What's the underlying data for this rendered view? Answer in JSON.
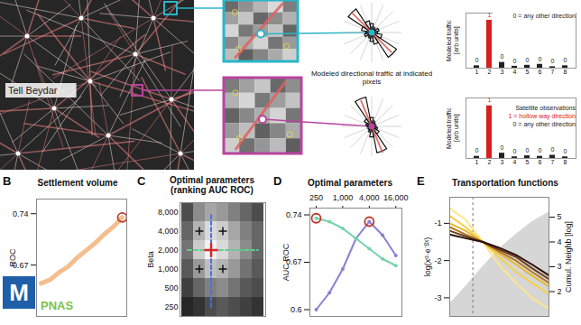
{
  "figure": {
    "map_label": "Tell Beydar",
    "rose_title": "Modeled directional traffic at indicated pixels",
    "roses": [
      {
        "color": "#29b6c9",
        "hollow_way_index": 6,
        "values": [
          0.3,
          0.2,
          0.15,
          0.25,
          0.2,
          0.35,
          1.0,
          0.4,
          0.3,
          0.2,
          0.15,
          0.25,
          0.2,
          0.35,
          0.95,
          0.4
        ]
      },
      {
        "color": "#b8459e",
        "hollow_way_index": 15,
        "values": [
          0.3,
          0.2,
          0.15,
          0.1,
          0.15,
          0.2,
          0.3,
          0.9,
          0.35,
          0.2,
          0.15,
          0.1,
          0.15,
          0.2,
          0.3,
          1.0
        ]
      }
    ],
    "watermark": {
      "letter": "M",
      "text": "PNAS"
    }
  },
  "chart_data": [
    {
      "type": "bar",
      "y_label": "Modeled traffic [arb units]",
      "categories": [
        "1",
        "2",
        "3",
        "4",
        "5",
        "6",
        "7",
        "8"
      ],
      "values": [
        0.05,
        1,
        0.12,
        0.04,
        0.06,
        0.08,
        0.03,
        0.05
      ],
      "observations": [
        0,
        1,
        0,
        0,
        0,
        0,
        0,
        0
      ],
      "colors": [
        "#222222",
        "#d62020",
        "#222222",
        "#222222",
        "#222222",
        "#222222",
        "#222222",
        "#222222"
      ],
      "annotations": [
        {
          "text": "0 = any other direction",
          "color": "#222222"
        }
      ],
      "ylim": [
        0,
        1.15
      ],
      "tick_labels": "x"
    },
    {
      "type": "bar",
      "y_label": "Modeled traffic [arb units]",
      "categories": [
        "1",
        "2",
        "3",
        "4",
        "5",
        "6",
        "7",
        "8"
      ],
      "values": [
        0.04,
        1,
        0.1,
        0.03,
        0.05,
        0.04,
        0.06,
        0.03
      ],
      "observations": [
        0,
        1,
        0,
        0,
        0,
        0,
        0,
        0
      ],
      "colors": [
        "#222222",
        "#d62020",
        "#222222",
        "#222222",
        "#222222",
        "#222222",
        "#222222",
        "#222222"
      ],
      "annotations": [
        {
          "text": "Satellite observations",
          "color": "#222222"
        },
        {
          "text": "1 = hollow way direction",
          "color": "#d62020"
        },
        {
          "text": "0 = any other direction",
          "color": "#222222"
        }
      ],
      "ylim": [
        0,
        1.15
      ],
      "tick_labels": "x"
    },
    {
      "type": "line",
      "panel": "B",
      "title": "Settlement volume",
      "y_label": "ROC",
      "x": [
        1,
        2,
        3,
        4,
        5,
        6,
        7,
        8,
        9,
        10
      ],
      "values": [
        0.645,
        0.65,
        0.66,
        0.668,
        0.68,
        0.69,
        0.7,
        0.712,
        0.722,
        0.735
      ],
      "color": "#f0a868",
      "highlight": {
        "index": 9,
        "color": "#c0392b"
      },
      "xlim": [
        0.5,
        10.5
      ],
      "ylim": [
        0.6,
        0.76
      ],
      "yticks": [
        0.67,
        0.74
      ],
      "tick_labels": "y"
    },
    {
      "type": "heatmap",
      "panel": "C",
      "title": "Optimal parameters (ranking AUC ROC)",
      "y_label": "Beta",
      "categories": [
        "250",
        "500",
        "1,000",
        "2,000",
        "4,000",
        "8,000"
      ],
      "cells": [
        [
          0.15,
          0.2,
          0.3,
          0.35,
          0.3,
          0.25,
          0.2
        ],
        [
          0.25,
          0.4,
          0.5,
          0.55,
          0.45,
          0.35,
          0.3
        ],
        [
          0.35,
          0.6,
          0.75,
          0.7,
          0.6,
          0.45,
          0.35
        ],
        [
          0.45,
          0.8,
          0.95,
          0.85,
          0.7,
          0.55,
          0.4
        ],
        [
          0.4,
          0.7,
          0.85,
          0.8,
          0.65,
          0.5,
          0.4
        ],
        [
          0.3,
          0.55,
          0.65,
          0.6,
          0.5,
          0.4,
          0.3
        ]
      ],
      "color_range": [
        0,
        1
      ],
      "optimum": {
        "col": 2,
        "row": 3,
        "color": "#d62728",
        "col_color": "#4a6fe3",
        "row_color": "#5fcf8f"
      },
      "crosses": [
        [
          1,
          4
        ],
        [
          3,
          2
        ],
        [
          1,
          2
        ],
        [
          3,
          4
        ]
      ],
      "tick_labels": "y"
    },
    {
      "type": "line",
      "panel": "D",
      "title": "Optimal parameters",
      "y_label": "AUC ROC",
      "x": [
        250,
        500,
        1000,
        2000,
        4000,
        8000,
        16000
      ],
      "log": "x",
      "xlim": [
        180,
        22000
      ],
      "xticks": [
        250,
        {
          "value": 1000,
          "label": "1,000"
        },
        {
          "value": 4000,
          "label": "4,000"
        },
        {
          "value": 16000,
          "label": "16,000"
        }
      ],
      "ylim": [
        0.59,
        0.75
      ],
      "yticks": [
        0.6,
        0.67,
        0.74
      ],
      "highlight_color": "#c0392b",
      "series": [
        {
          "color": "#8b7fd4",
          "marker": "circle",
          "highlight": 4,
          "values": [
            0.6,
            0.625,
            0.66,
            0.705,
            0.73,
            0.71,
            0.68
          ]
        },
        {
          "color": "#74d3ac",
          "marker": "circle",
          "highlight": 0,
          "values": [
            0.735,
            0.73,
            0.72,
            0.705,
            0.69,
            0.675,
            0.665
          ]
        }
      ]
    },
    {
      "type": "line",
      "panel": "E",
      "title": "Transportation functions",
      "y_label": "log(xᵅ·e⁻ᵝˣ)",
      "y2_label": "Cumul. Neighb [log]",
      "x": [
        0.1,
        0.3,
        1,
        3,
        10,
        30,
        100
      ],
      "log": "x",
      "xlim": [
        0.1,
        100
      ],
      "ylim": [
        -3.5,
        -0.3
      ],
      "yticks": [
        -3,
        -2,
        -1
      ],
      "y2lim": [
        1,
        5.8
      ],
      "y2ticks": [
        2,
        3,
        4,
        5
      ],
      "vline": 0.5,
      "tick_labels": "y",
      "series": [
        {
          "type": "area",
          "axis": "y2",
          "color": "#d6d6d6",
          "values": [
            1.5,
            2.2,
            3,
            3.7,
            4.3,
            4.8,
            5.2
          ]
        },
        {
          "color": "#fde68a",
          "values": [
            -0.6,
            -0.9,
            -1.5,
            -2.1,
            -2.6,
            -3.0,
            -3.3
          ]
        },
        {
          "color": "#f7d046",
          "values": [
            -0.8,
            -1.1,
            -1.5,
            -1.9,
            -2.3,
            -2.6,
            -2.9
          ]
        },
        {
          "color": "#e8b830",
          "values": [
            -1.0,
            -1.2,
            -1.5,
            -1.8,
            -2.1,
            -2.4,
            -2.7
          ]
        },
        {
          "color": "#b07a2a",
          "values": [
            -1.1,
            -1.3,
            -1.5,
            -1.75,
            -2.0,
            -2.3,
            -2.6
          ]
        },
        {
          "color": "#6e3b1f",
          "values": [
            -1.2,
            -1.35,
            -1.5,
            -1.7,
            -1.9,
            -2.2,
            -2.5
          ]
        },
        {
          "color": "#2b1208",
          "values": [
            -1.3,
            -1.4,
            -1.5,
            -1.65,
            -1.85,
            -2.1,
            -2.4
          ]
        }
      ]
    }
  ]
}
